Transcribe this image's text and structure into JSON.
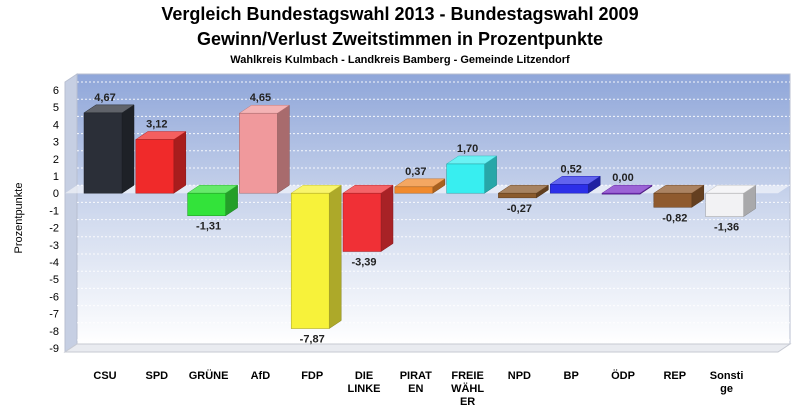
{
  "chart_data": {
    "type": "bar",
    "title": "Vergleich Bundestagswahl 2013 - Bundestagswahl 2009",
    "subtitle": "Gewinn/Verlust Zweitstimmen in Prozentpunkte",
    "caption": "Wahlkreis Kulmbach - Landkreis Bamberg - Gemeinde Litzendorf",
    "ylabel": "Prozentpunkte",
    "xlabel": "",
    "ylim": [
      -9,
      6
    ],
    "yticks": [
      "6",
      "5",
      "4",
      "3",
      "2",
      "1",
      "0",
      "-1",
      "-2",
      "-3",
      "-4",
      "-5",
      "-6",
      "-7",
      "-8",
      "-9"
    ],
    "grid": true,
    "categories": [
      [
        "CSU"
      ],
      [
        "SPD"
      ],
      [
        "GRÜNE"
      ],
      [
        "AfD"
      ],
      [
        "FDP"
      ],
      [
        "DIE",
        "LINKE"
      ],
      [
        "PIRAT",
        "EN"
      ],
      [
        "FREIE",
        "WÄHL",
        "ER"
      ],
      [
        "NPD"
      ],
      [
        "BP"
      ],
      [
        "ÖDP"
      ],
      [
        "REP"
      ],
      [
        "Sonsti",
        "ge"
      ]
    ],
    "values": [
      4.67,
      3.12,
      -1.31,
      4.65,
      -7.87,
      -3.39,
      0.37,
      1.7,
      -0.27,
      0.52,
      0.0,
      -0.82,
      -1.36
    ],
    "value_labels": [
      "4,67",
      "3,12",
      "-1,31",
      "4,65",
      "-7,87",
      "-3,39",
      "0,37",
      "1,70",
      "-0,27",
      "0,52",
      "0,00",
      "-0,82",
      "-1,36"
    ],
    "colors": [
      "#2b2f38",
      "#f02a2a",
      "#33e33a",
      "#f0999c",
      "#f7f23a",
      "#f03036",
      "#f08a2e",
      "#38eef0",
      "#8a5a2c",
      "#2c2fe8",
      "#7a2fc8",
      "#8f5a2e",
      "#f2f2f4"
    ]
  }
}
